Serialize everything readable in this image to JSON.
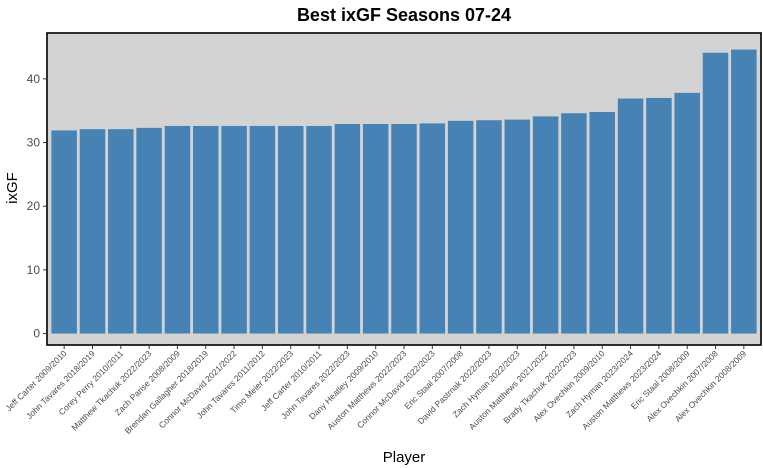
{
  "chart_data": {
    "type": "bar",
    "title": "Best ixGF Seasons 07-24",
    "xlabel": "Player",
    "ylabel": "ixGF",
    "ylim": [
      -1.8,
      47.2
    ],
    "yticks": [
      0,
      10,
      20,
      30,
      40
    ],
    "grid": false,
    "colors": {
      "bar": "#4682b4",
      "panel_background": "#d3d3d3",
      "panel_border": "#000000",
      "tick": "#333333"
    },
    "categories": [
      "Jeff Carter 2009/2010",
      "John Tavares 2018/2019",
      "Corey Perry 2010/2011",
      "Matthew Tkachuk 2022/2023",
      "Zach Parise 2008/2009",
      "Brendan Gallagher 2018/2019",
      "Connor McDavid 2021/2022",
      "John Tavares 2011/2012",
      "Timo Meier 2022/2023",
      "Jeff Carter 2010/2011",
      "John Tavares 2022/2023",
      "Dany Heatley 2009/2010",
      "Auston Matthews 2022/2023",
      "Connor McDavid 2022/2023",
      "Eric Staal 2007/2008",
      "David Pastrnak 2022/2023",
      "Zach Hyman 2022/2023",
      "Auston Matthews 2021/2022",
      "Brady Tkachuk 2022/2023",
      "Alex Ovechkin 2009/2010",
      "Zach Hyman 2023/2024",
      "Auston Matthews 2023/2024",
      "Eric Staal 2008/2009",
      "Alex Ovechkin 2007/2008",
      "Alex Ovechkin 2008/2009"
    ],
    "values": [
      31.9,
      32.1,
      32.1,
      32.3,
      32.6,
      32.6,
      32.6,
      32.6,
      32.6,
      32.6,
      32.9,
      32.9,
      32.9,
      33.0,
      33.4,
      33.5,
      33.6,
      34.1,
      34.6,
      34.8,
      36.9,
      37.0,
      37.8,
      44.1,
      44.6
    ]
  }
}
